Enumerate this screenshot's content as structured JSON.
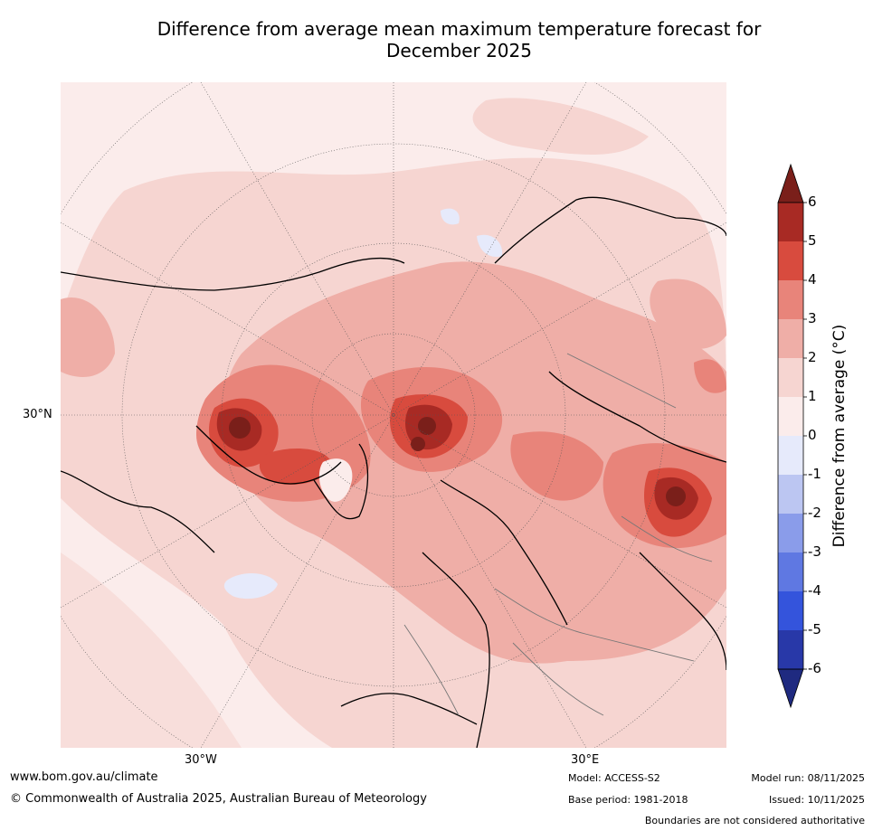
{
  "title": {
    "line1": "Difference from average mean maximum temperature forecast for",
    "line2": "December 2025"
  },
  "map": {
    "lat_label": "30°N",
    "lon_labels": [
      "30°W",
      "30°E"
    ]
  },
  "colorbar": {
    "title": "Difference from average (°C)",
    "ticks": [
      "6",
      "5",
      "4",
      "3",
      "2",
      "1",
      "0",
      "-1",
      "-2",
      "-3",
      "-4",
      "-5",
      "-6"
    ],
    "colors": {
      "above_6": "#7a1f1a",
      "5_6": "#a82a24",
      "4_5": "#d84b3e",
      "3_4": "#e8847a",
      "2_3": "#efaea7",
      "1_2": "#f6d5d1",
      "0_1": "#fbeceb",
      "m1_0": "#e6eafb",
      "m2_m1": "#bcc6f2",
      "m3_m2": "#8a9cea",
      "m4_m3": "#5f78e2",
      "m5_m4": "#3454dc",
      "m6_m5": "#2838a8",
      "below_m6": "#1f2a80"
    }
  },
  "footer": {
    "website": "www.bom.gov.au/climate",
    "copyright": "© Commonwealth of Australia 2025, Australian Bureau of Meteorology",
    "model": "Model: ACCESS-S2",
    "base_period": "Base period: 1981-2018",
    "model_run": "Model run: 08/11/2025",
    "issued": "Issued: 10/11/2025",
    "disclaimer": "Boundaries are not considered authoritative"
  }
}
